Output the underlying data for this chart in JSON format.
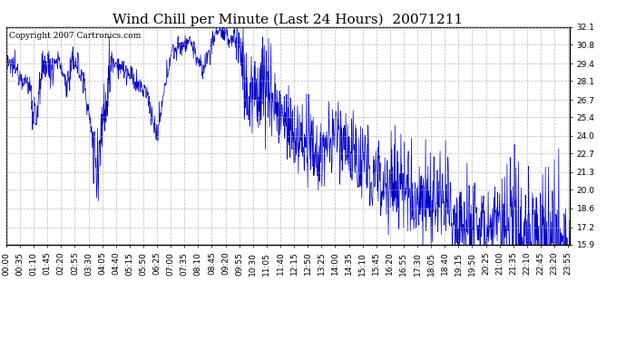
{
  "title": "Wind Chill per Minute (Last 24 Hours)  20071211",
  "copyright": "Copyright 2007 Cartronics.com",
  "line_color": "#0000CC",
  "bg_color": "#ffffff",
  "plot_bg_color": "#ffffff",
  "grid_color": "#aaaaaa",
  "ylim": [
    15.9,
    32.1
  ],
  "yticks": [
    15.9,
    17.2,
    18.6,
    20.0,
    21.3,
    22.7,
    24.0,
    25.4,
    26.7,
    28.1,
    29.4,
    30.8,
    32.1
  ],
  "xlabel": "",
  "ylabel": "",
  "title_fontsize": 11,
  "tick_fontsize": 6.5,
  "copyright_fontsize": 6.5
}
